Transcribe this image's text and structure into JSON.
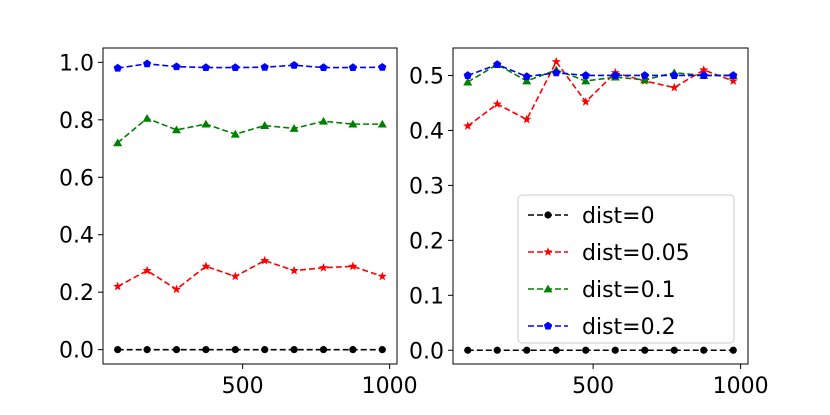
{
  "chart_data": [
    {
      "type": "line",
      "x": [
        75,
        175,
        275,
        375,
        475,
        575,
        675,
        775,
        875,
        975
      ],
      "xticks": [
        500,
        1000
      ],
      "ylim": [
        -0.05,
        1.05
      ],
      "yticks": [
        0.0,
        0.2,
        0.4,
        0.6,
        0.8,
        1.0
      ],
      "ytick_labels": [
        "0.0",
        "0.2",
        "0.4",
        "0.6",
        "0.8",
        "1.0"
      ],
      "legend": "none",
      "grid": false,
      "series": [
        {
          "name": "dist=0",
          "color": "#000000",
          "marker": "circle",
          "values": [
            0.0,
            0.0,
            0.0,
            0.0,
            0.0,
            0.0,
            0.0,
            0.0,
            0.0,
            0.0
          ]
        },
        {
          "name": "dist=0.05",
          "color": "#ff0000",
          "marker": "star",
          "values": [
            0.22,
            0.275,
            0.21,
            0.29,
            0.255,
            0.31,
            0.275,
            0.285,
            0.29,
            0.255
          ]
        },
        {
          "name": "dist=0.1",
          "color": "#008000",
          "marker": "triangle",
          "values": [
            0.72,
            0.805,
            0.765,
            0.785,
            0.75,
            0.78,
            0.77,
            0.795,
            0.785,
            0.785
          ]
        },
        {
          "name": "dist=0.2",
          "color": "#0000ff",
          "marker": "pentagon",
          "values": [
            0.98,
            0.995,
            0.985,
            0.982,
            0.982,
            0.983,
            0.99,
            0.982,
            0.982,
            0.983
          ]
        }
      ]
    },
    {
      "type": "line",
      "x": [
        75,
        175,
        275,
        375,
        475,
        575,
        675,
        775,
        875,
        975
      ],
      "xticks": [
        500,
        1000
      ],
      "ylim": [
        -0.025,
        0.55
      ],
      "yticks": [
        0.0,
        0.1,
        0.2,
        0.3,
        0.4,
        0.5
      ],
      "ytick_labels": [
        "0.0",
        "0.1",
        "0.2",
        "0.3",
        "0.4",
        "0.5"
      ],
      "legend": "lower-right",
      "grid": false,
      "series": [
        {
          "name": "dist=0",
          "color": "#000000",
          "marker": "circle",
          "values": [
            0.0,
            0.0,
            0.0,
            0.0,
            0.0,
            0.0,
            0.0,
            0.0,
            0.0,
            0.0
          ]
        },
        {
          "name": "dist=0.05",
          "color": "#ff0000",
          "marker": "star",
          "values": [
            0.408,
            0.448,
            0.42,
            0.525,
            0.452,
            0.505,
            0.49,
            0.478,
            0.51,
            0.49
          ]
        },
        {
          "name": "dist=0.1",
          "color": "#008000",
          "marker": "triangle",
          "values": [
            0.488,
            0.52,
            0.49,
            0.51,
            0.49,
            0.497,
            0.492,
            0.505,
            0.5,
            0.5
          ]
        },
        {
          "name": "dist=0.2",
          "color": "#0000ff",
          "marker": "pentagon",
          "values": [
            0.5,
            0.52,
            0.498,
            0.505,
            0.5,
            0.5,
            0.5,
            0.5,
            0.5,
            0.5
          ]
        }
      ]
    }
  ],
  "legend_entries": [
    "dist=0",
    "dist=0.05",
    "dist=0.1",
    "dist=0.2"
  ]
}
